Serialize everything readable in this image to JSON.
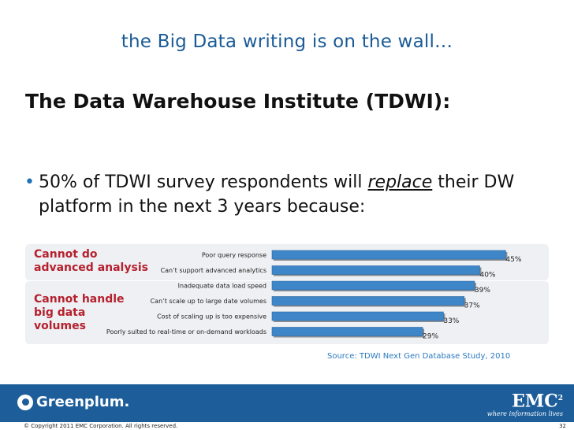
{
  "slide": {
    "title": "the Big Data writing is on the wall…",
    "heading": "The Data Warehouse Institute (TDWI):",
    "bullet_before": "50% of TDWI survey respondents will ",
    "bullet_emphasis": "replace",
    "bullet_after": " their DW platform in the next 3 years because:",
    "bullet_symbol": "•"
  },
  "groups": [
    {
      "label": "Cannot do advanced analysis"
    },
    {
      "label": "Cannot handle big data volumes"
    }
  ],
  "chart_data": {
    "type": "bar",
    "orientation": "horizontal",
    "categories": [
      "Poor query response",
      "Can’t support advanced analytics",
      "Inadequate data load speed",
      "Can’t scale up to large date volumes",
      "Cost of scaling up is too expensive",
      "Poorly suited to real-time or on-demand workloads"
    ],
    "values": [
      45,
      40,
      39,
      37,
      33,
      29
    ],
    "value_labels": [
      "45%",
      "40%",
      "39%",
      "37%",
      "33%",
      "29%"
    ],
    "xlim": [
      0,
      46
    ],
    "bar_color": "#3f86c8",
    "grid": false,
    "legend": "none"
  },
  "source": "Source: TDWI Next Gen Database Study, 2010",
  "footer": {
    "brand_left": "Greenplum.",
    "brand_right": "EMC",
    "brand_right_sup": "2",
    "brand_right_tagline": "where information lives",
    "copyright": "© Copyright 2011 EMC Corporation. All rights reserved.",
    "page_number": "32"
  },
  "colors": {
    "title": "#1a5b96",
    "group_label": "#b5202e",
    "footer_bg": "#1c5d9a",
    "panel_bg": "#eef0f3"
  }
}
